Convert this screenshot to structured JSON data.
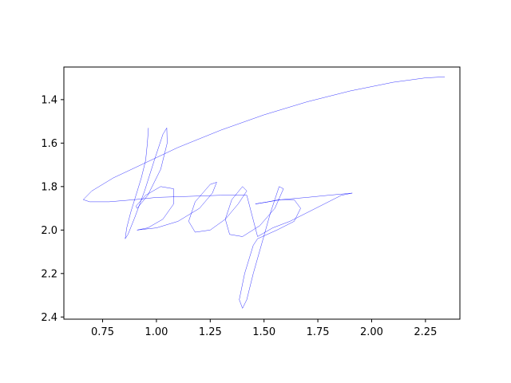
{
  "chart_data": {
    "type": "line",
    "title": "",
    "xlabel": "",
    "ylabel": "",
    "xlim": [
      0.57,
      2.41
    ],
    "ylim": [
      2.41,
      1.25
    ],
    "y_inverted": true,
    "grid": false,
    "legend": "none",
    "xticks": [
      0.75,
      1.0,
      1.25,
      1.5,
      1.75,
      2.0,
      2.25
    ],
    "xtick_labels": [
      "0.75",
      "1.00",
      "1.25",
      "1.50",
      "1.75",
      "2.00",
      "2.25"
    ],
    "yticks": [
      1.4,
      1.6,
      1.8,
      2.0,
      2.2,
      2.4
    ],
    "ytick_labels": [
      "1.4",
      "1.6",
      "1.8",
      "2.0",
      "2.2",
      "2.4"
    ],
    "series_color": "#0000ff",
    "series": [
      {
        "values": [
          [
            0.963,
            1.53
          ],
          [
            0.958,
            1.6
          ],
          [
            0.95,
            1.68
          ],
          [
            0.93,
            1.76
          ],
          [
            0.905,
            1.84
          ],
          [
            0.88,
            1.92
          ],
          [
            0.862,
            1.99
          ],
          [
            0.855,
            2.04
          ],
          [
            0.868,
            2.02
          ],
          [
            0.9,
            1.94
          ],
          [
            0.945,
            1.82
          ],
          [
            0.99,
            1.68
          ],
          [
            1.03,
            1.56
          ],
          [
            1.048,
            1.53
          ],
          [
            1.05,
            1.6
          ],
          [
            1.02,
            1.72
          ],
          [
            0.96,
            1.84
          ],
          [
            0.91,
            1.9
          ],
          [
            0.905,
            1.89
          ],
          [
            0.95,
            1.84
          ],
          [
            1.02,
            1.8
          ],
          [
            1.08,
            1.81
          ],
          [
            1.08,
            1.88
          ],
          [
            1.03,
            1.95
          ],
          [
            0.96,
            1.99
          ],
          [
            0.91,
            2.0
          ],
          [
            1.0,
            1.99
          ],
          [
            1.1,
            1.96
          ],
          [
            1.2,
            1.9
          ],
          [
            1.26,
            1.83
          ],
          [
            1.28,
            1.78
          ],
          [
            1.25,
            1.79
          ],
          [
            1.18,
            1.87
          ],
          [
            1.15,
            1.96
          ],
          [
            1.18,
            2.01
          ],
          [
            1.25,
            2.0
          ],
          [
            1.32,
            1.95
          ],
          [
            1.38,
            1.88
          ],
          [
            1.42,
            1.82
          ],
          [
            1.4,
            1.8
          ],
          [
            1.35,
            1.86
          ],
          [
            1.32,
            1.95
          ],
          [
            1.34,
            2.02
          ],
          [
            1.4,
            2.03
          ],
          [
            1.48,
            1.98
          ],
          [
            1.55,
            1.9
          ],
          [
            1.59,
            1.81
          ],
          [
            1.57,
            1.8
          ],
          [
            1.53,
            1.92
          ],
          [
            1.49,
            2.06
          ],
          [
            1.45,
            2.2
          ],
          [
            1.42,
            2.32
          ],
          [
            1.4,
            2.36
          ],
          [
            1.385,
            2.32
          ],
          [
            1.41,
            2.2
          ],
          [
            1.45,
            2.07
          ],
          [
            1.47,
            2.04
          ],
          [
            1.56,
            2.0
          ],
          [
            1.64,
            1.96
          ],
          [
            1.67,
            1.9
          ],
          [
            1.64,
            1.86
          ],
          [
            1.57,
            1.86
          ],
          [
            1.52,
            1.87
          ],
          [
            1.46,
            1.88
          ],
          [
            1.58,
            1.86
          ],
          [
            1.7,
            1.85
          ],
          [
            1.8,
            1.84
          ],
          [
            1.91,
            1.83
          ],
          [
            1.86,
            1.84
          ],
          [
            1.78,
            1.88
          ],
          [
            1.7,
            1.92
          ],
          [
            1.62,
            1.96
          ],
          [
            1.54,
            1.99
          ],
          [
            1.47,
            2.03
          ],
          [
            1.42,
            1.84
          ],
          [
            1.3,
            1.84
          ],
          [
            1.15,
            1.845
          ],
          [
            1.0,
            1.85
          ],
          [
            0.9,
            1.86
          ],
          [
            0.78,
            1.87
          ],
          [
            0.69,
            1.87
          ],
          [
            0.66,
            1.86
          ],
          [
            0.7,
            1.82
          ],
          [
            0.8,
            1.76
          ],
          [
            0.95,
            1.69
          ],
          [
            1.1,
            1.62
          ],
          [
            1.3,
            1.54
          ],
          [
            1.5,
            1.47
          ],
          [
            1.7,
            1.41
          ],
          [
            1.9,
            1.36
          ],
          [
            2.1,
            1.32
          ],
          [
            2.25,
            1.3
          ],
          [
            2.34,
            1.295
          ]
        ]
      }
    ]
  }
}
